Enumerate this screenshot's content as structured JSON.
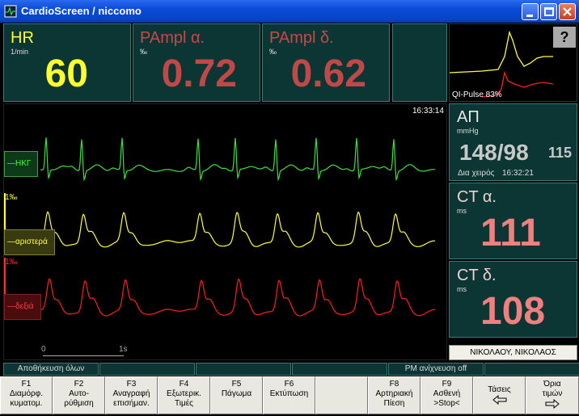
{
  "window": {
    "title": "CardioScreen / niccomo"
  },
  "top_panels": [
    {
      "label": "HR",
      "unit": "1/min",
      "value": "60"
    },
    {
      "label": "PAmpl α.",
      "unit": "‰",
      "value": "0.72"
    },
    {
      "label": "PAmpl δ.",
      "unit": "‰",
      "value": "0.62"
    }
  ],
  "pulse": {
    "button": "?",
    "quality": "QI-Pulse 83%"
  },
  "waveform": {
    "time": "16:33:14",
    "ecg_label": "ΗΚΓ",
    "left_scale": "1‰",
    "left_label": "αριστερά",
    "right_scale": "1‰",
    "right_label": "δεξιά",
    "scale_start": "0",
    "scale_end": "1s"
  },
  "bp": {
    "label": "ΑΠ",
    "unit": "mmHg",
    "value": "148/98",
    "mean": "115",
    "note": "Δια χειρός",
    "time": "16:32:21"
  },
  "ct_left": {
    "label": "CT α.",
    "unit": "ms",
    "value": "111"
  },
  "ct_right": {
    "label": "CT δ.",
    "unit": "ms",
    "value": "108"
  },
  "patient": "ΝΙΚΟΛΑΟΥ, ΝΙΚΟΛΑΟΣ",
  "status": [
    "Αποθήκευση όλων",
    "",
    "",
    "",
    "PM ανίχνευση off",
    "",
    ""
  ],
  "buttons": [
    {
      "key": "F1",
      "lines": [
        "Διαμόρφ.",
        "κυματομ."
      ]
    },
    {
      "key": "F2",
      "lines": [
        "Αυτο-",
        "ρύθμιση"
      ]
    },
    {
      "key": "F3",
      "lines": [
        "Αναγραφή",
        "επισήμαν."
      ]
    },
    {
      "key": "F4",
      "lines": [
        "Εξωτερικ.",
        "Τιμές"
      ]
    },
    {
      "key": "F5",
      "lines": [
        "Πάγωμα"
      ]
    },
    {
      "key": "F6",
      "lines": [
        "Εκτύπωση"
      ]
    },
    {
      "key": "",
      "lines": []
    },
    {
      "key": "F8",
      "lines": [
        "Αρτηριακή",
        "Πίεση"
      ]
    },
    {
      "key": "F9",
      "lines": [
        "Ασθενή",
        ">Stop<"
      ]
    },
    {
      "key": "Τάσεις",
      "lines": []
    },
    {
      "key": "Όρια",
      "lines": [
        "τιμών"
      ]
    }
  ]
}
